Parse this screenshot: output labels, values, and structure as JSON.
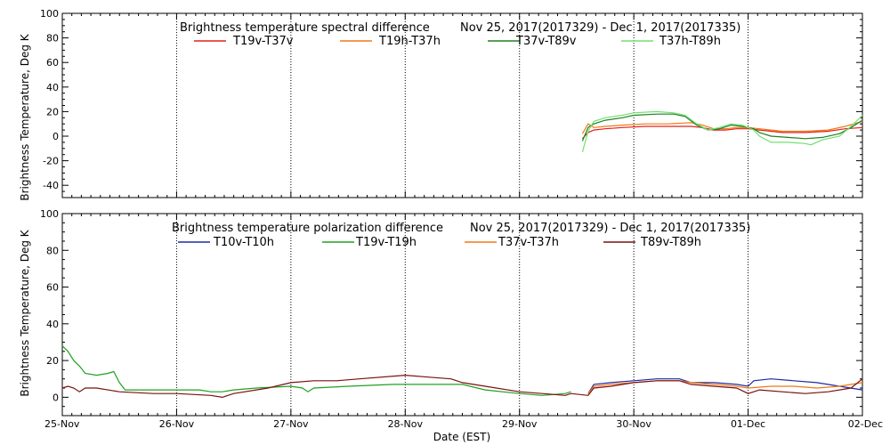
{
  "xlabel": "Date (EST)",
  "x_ticks": [
    "25-Nov",
    "26-Nov",
    "27-Nov",
    "28-Nov",
    "29-Nov",
    "30-Nov",
    "01-Dec",
    "02-Dec"
  ],
  "chart_data": [
    {
      "type": "line",
      "title": "Brightness temperature spectral difference",
      "subtitle": "Nov 25, 2017(2017329) - Dec  1, 2017(2017335)",
      "ylabel": "Brightness Temperature, Deg K",
      "xlim": [
        0,
        7
      ],
      "ylim": [
        -50,
        100
      ],
      "yticks": [
        -40,
        -20,
        0,
        20,
        40,
        60,
        80,
        100
      ],
      "grid": "vertical-dotted",
      "legend_position": "top",
      "series": [
        {
          "name": "T19v-T37v",
          "color": "#e0201a",
          "points": [
            [
              4.55,
              -2
            ],
            [
              4.6,
              3
            ],
            [
              4.65,
              5
            ],
            [
              4.75,
              6
            ],
            [
              4.9,
              7
            ],
            [
              5.1,
              8
            ],
            [
              5.3,
              8
            ],
            [
              5.5,
              8
            ],
            [
              5.6,
              7
            ],
            [
              5.7,
              5
            ],
            [
              5.8,
              5
            ],
            [
              5.9,
              6
            ],
            [
              6.0,
              6
            ],
            [
              6.1,
              5
            ],
            [
              6.2,
              4
            ],
            [
              6.3,
              3
            ],
            [
              6.5,
              3
            ],
            [
              6.7,
              4
            ],
            [
              6.85,
              6
            ],
            [
              7.0,
              7
            ]
          ]
        },
        {
          "name": "T19h-T37h",
          "color": "#f07818",
          "points": [
            [
              4.55,
              2
            ],
            [
              4.6,
              10
            ],
            [
              4.65,
              7
            ],
            [
              4.75,
              8
            ],
            [
              4.9,
              9
            ],
            [
              5.1,
              10
            ],
            [
              5.3,
              10
            ],
            [
              5.5,
              11
            ],
            [
              5.6,
              9
            ],
            [
              5.7,
              6
            ],
            [
              5.8,
              6
            ],
            [
              5.9,
              7
            ],
            [
              6.0,
              7
            ],
            [
              6.1,
              6
            ],
            [
              6.2,
              5
            ],
            [
              6.3,
              4
            ],
            [
              6.5,
              4
            ],
            [
              6.7,
              5
            ],
            [
              6.85,
              8
            ],
            [
              7.0,
              12
            ]
          ]
        },
        {
          "name": "T37v-T89v",
          "color": "#208020",
          "points": [
            [
              4.55,
              -4
            ],
            [
              4.6,
              7
            ],
            [
              4.65,
              10
            ],
            [
              4.75,
              13
            ],
            [
              4.9,
              15
            ],
            [
              5.0,
              17
            ],
            [
              5.2,
              18
            ],
            [
              5.35,
              18
            ],
            [
              5.45,
              16
            ],
            [
              5.55,
              9
            ],
            [
              5.65,
              5
            ],
            [
              5.75,
              6
            ],
            [
              5.85,
              9
            ],
            [
              5.95,
              8
            ],
            [
              6.05,
              6
            ],
            [
              6.1,
              3
            ],
            [
              6.2,
              0
            ],
            [
              6.35,
              -1
            ],
            [
              6.5,
              -2
            ],
            [
              6.65,
              -1
            ],
            [
              6.8,
              2
            ],
            [
              6.9,
              7
            ],
            [
              7.0,
              13
            ]
          ]
        },
        {
          "name": "T37h-T89h",
          "color": "#70e070",
          "points": [
            [
              4.55,
              -13
            ],
            [
              4.6,
              4
            ],
            [
              4.65,
              12
            ],
            [
              4.75,
              15
            ],
            [
              4.9,
              17
            ],
            [
              5.0,
              19
            ],
            [
              5.2,
              20
            ],
            [
              5.35,
              19
            ],
            [
              5.45,
              17
            ],
            [
              5.55,
              10
            ],
            [
              5.65,
              5
            ],
            [
              5.75,
              7
            ],
            [
              5.85,
              10
            ],
            [
              5.95,
              9
            ],
            [
              6.05,
              5
            ],
            [
              6.1,
              0
            ],
            [
              6.2,
              -5
            ],
            [
              6.35,
              -5
            ],
            [
              6.5,
              -6
            ],
            [
              6.55,
              -7
            ],
            [
              6.65,
              -3
            ],
            [
              6.8,
              0
            ],
            [
              6.9,
              8
            ],
            [
              7.0,
              17
            ]
          ]
        }
      ]
    },
    {
      "type": "line",
      "title": "Brightness temperature polarization difference",
      "subtitle": "Nov 25, 2017(2017329) - Dec  1, 2017(2017335)",
      "ylabel": "Brightness Temperature, Deg K",
      "xlim": [
        0,
        7
      ],
      "ylim": [
        -10,
        100
      ],
      "yticks": [
        0,
        20,
        40,
        60,
        80,
        100
      ],
      "grid": "vertical-dotted",
      "legend_position": "top",
      "series": [
        {
          "name": "T10v-T10h",
          "color": "#1c2aa0",
          "points": [
            [
              4.6,
              2
            ],
            [
              4.65,
              7
            ],
            [
              4.8,
              8
            ],
            [
              5.0,
              9
            ],
            [
              5.2,
              10
            ],
            [
              5.4,
              10
            ],
            [
              5.5,
              8
            ],
            [
              5.7,
              8
            ],
            [
              5.9,
              7
            ],
            [
              6.0,
              6
            ],
            [
              6.05,
              9
            ],
            [
              6.2,
              10
            ],
            [
              6.4,
              9
            ],
            [
              6.6,
              8
            ],
            [
              6.8,
              6
            ],
            [
              7.0,
              4
            ]
          ]
        },
        {
          "name": "T19v-T19h",
          "color": "#20a020",
          "points": [
            [
              0.0,
              28
            ],
            [
              0.05,
              25
            ],
            [
              0.1,
              20
            ],
            [
              0.15,
              17
            ],
            [
              0.2,
              13
            ],
            [
              0.3,
              12
            ],
            [
              0.4,
              13
            ],
            [
              0.45,
              14
            ],
            [
              0.5,
              8
            ],
            [
              0.55,
              4
            ],
            [
              0.8,
              4
            ],
            [
              1.0,
              4
            ],
            [
              1.2,
              4
            ],
            [
              1.3,
              3
            ],
            [
              1.4,
              3
            ],
            [
              1.5,
              4
            ],
            [
              1.7,
              5
            ],
            [
              2.0,
              6
            ],
            [
              2.1,
              5
            ],
            [
              2.15,
              3
            ],
            [
              2.2,
              5
            ],
            [
              2.5,
              6
            ],
            [
              2.9,
              7
            ],
            [
              3.3,
              7
            ],
            [
              3.5,
              7
            ],
            [
              3.7,
              4
            ],
            [
              4.0,
              2
            ],
            [
              4.2,
              1
            ],
            [
              4.4,
              2
            ],
            [
              4.45,
              3
            ]
          ]
        },
        {
          "name": "T37v-T37h",
          "color": "#f07818",
          "points": [
            [
              4.6,
              2
            ],
            [
              4.65,
              6
            ],
            [
              4.8,
              7
            ],
            [
              5.0,
              8
            ],
            [
              5.2,
              9
            ],
            [
              5.4,
              9
            ],
            [
              5.5,
              8
            ],
            [
              5.7,
              7
            ],
            [
              5.9,
              6
            ],
            [
              6.0,
              5
            ],
            [
              6.2,
              6
            ],
            [
              6.4,
              6
            ],
            [
              6.6,
              5
            ],
            [
              6.8,
              6
            ],
            [
              7.0,
              8
            ]
          ]
        },
        {
          "name": "T89v-T89h",
          "color": "#7a1010",
          "points": [
            [
              0.0,
              5
            ],
            [
              0.05,
              6
            ],
            [
              0.1,
              5
            ],
            [
              0.15,
              3
            ],
            [
              0.2,
              5
            ],
            [
              0.3,
              5
            ],
            [
              0.5,
              3
            ],
            [
              0.8,
              2
            ],
            [
              1.0,
              2
            ],
            [
              1.3,
              1
            ],
            [
              1.4,
              0
            ],
            [
              1.5,
              2
            ],
            [
              1.8,
              5
            ],
            [
              2.0,
              8
            ],
            [
              2.2,
              9
            ],
            [
              2.4,
              9
            ],
            [
              2.6,
              10
            ],
            [
              3.0,
              12
            ],
            [
              3.2,
              11
            ],
            [
              3.4,
              10
            ],
            [
              3.5,
              8
            ],
            [
              3.7,
              6
            ],
            [
              4.0,
              3
            ],
            [
              4.2,
              2
            ],
            [
              4.4,
              1
            ],
            [
              4.45,
              2
            ],
            [
              4.6,
              1
            ],
            [
              4.65,
              5
            ],
            [
              4.8,
              6
            ],
            [
              5.0,
              8
            ],
            [
              5.2,
              9
            ],
            [
              5.4,
              9
            ],
            [
              5.5,
              7
            ],
            [
              5.7,
              6
            ],
            [
              5.9,
              5
            ],
            [
              6.0,
              2
            ],
            [
              6.1,
              4
            ],
            [
              6.3,
              3
            ],
            [
              6.5,
              2
            ],
            [
              6.7,
              3
            ],
            [
              6.9,
              5
            ],
            [
              7.0,
              10
            ]
          ]
        }
      ]
    }
  ]
}
